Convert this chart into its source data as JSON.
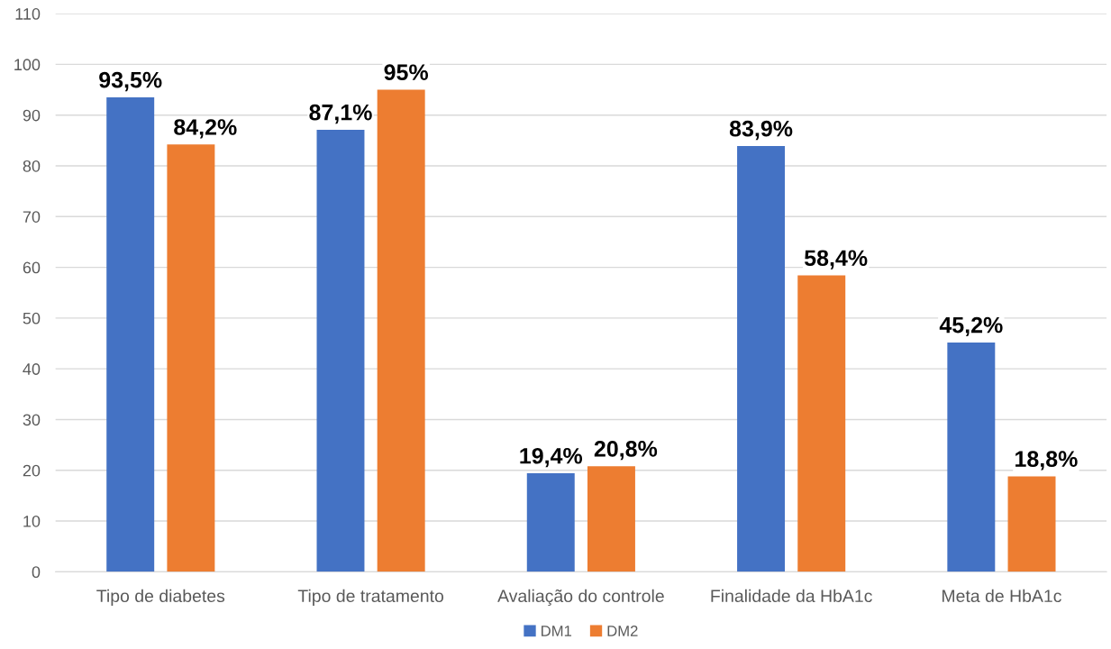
{
  "chart_data": {
    "type": "bar",
    "categories": [
      "Tipo de diabetes",
      "Tipo de tratamento",
      "Avaliação do controle",
      "Finalidade da HbA1c",
      "Meta de HbA1c"
    ],
    "series": [
      {
        "name": "DM1",
        "color": "#4472c4",
        "values": [
          93.5,
          87.1,
          19.4,
          83.9,
          45.2
        ],
        "value_labels": [
          "93,5%",
          "87,1%",
          "19,4%",
          "83,9%",
          "45,2%"
        ]
      },
      {
        "name": "DM2",
        "color": "#ed7d31",
        "values": [
          84.2,
          95,
          20.8,
          58.4,
          18.8
        ],
        "value_labels": [
          "84,2%",
          "95%",
          "20,8%",
          "58,4%",
          "18,8%"
        ]
      }
    ],
    "ylim": [
      0,
      110
    ],
    "yticks": [
      0,
      10,
      20,
      30,
      40,
      50,
      60,
      70,
      80,
      90,
      100,
      110
    ],
    "grid": "y",
    "legend": "bottom"
  }
}
